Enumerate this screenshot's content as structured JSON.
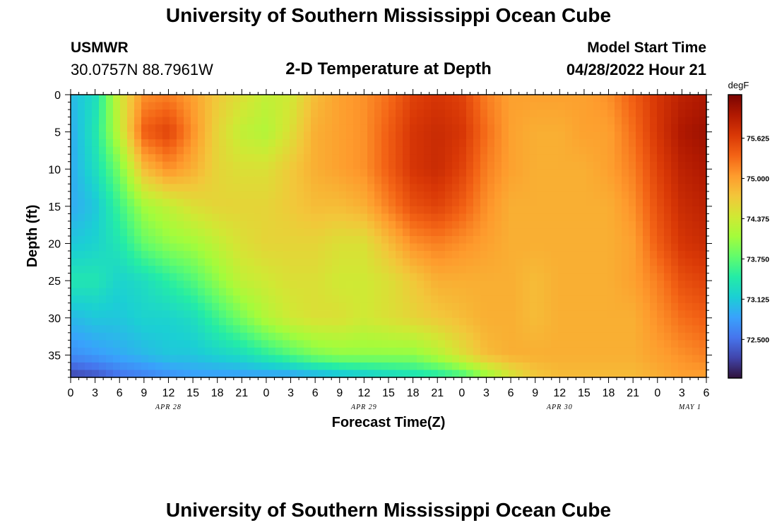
{
  "header": {
    "title": "University of Southern Mississippi Ocean Cube",
    "station": "USMWR",
    "coordinates": "30.0757N  88.7961W",
    "subtitle": "2-D Temperature at Depth",
    "model_start_label": "Model Start Time",
    "model_start_value": "04/28/2022 Hour 21"
  },
  "footer": {
    "title": "University of Southern Mississippi Ocean Cube"
  },
  "chart_data": {
    "type": "heatmap",
    "title": "2-D Temperature at Depth",
    "xlabel": "Forecast Time(Z)",
    "ylabel": "Depth (ft)",
    "colorbar_label": "degF",
    "x_range_hours": [
      0,
      78
    ],
    "y_range_ft": [
      0,
      38
    ],
    "y_inverted": true,
    "x_tick_step_hours": 3,
    "x_tick_labels": [
      "0",
      "3",
      "6",
      "9",
      "12",
      "15",
      "18",
      "21",
      "0",
      "3",
      "6",
      "9",
      "12",
      "15",
      "18",
      "21",
      "0",
      "3",
      "6",
      "9",
      "12",
      "15",
      "18",
      "21",
      "0",
      "3",
      "6"
    ],
    "date_labels": [
      {
        "label": "APR 28",
        "hour": 12
      },
      {
        "label": "APR 29",
        "hour": 36
      },
      {
        "label": "APR 30",
        "hour": 60
      },
      {
        "label": "MAY 1",
        "hour": 76
      }
    ],
    "y_ticks": [
      0,
      5,
      10,
      15,
      20,
      25,
      30,
      35
    ],
    "colorbar_ticks": [
      "75.625",
      "75.000",
      "74.375",
      "73.750",
      "73.125",
      "72.500"
    ],
    "color_range": [
      71.9,
      76.3
    ],
    "colormap": [
      "#30123b",
      "#4145ab",
      "#4675ed",
      "#39a2fc",
      "#1bcfd4",
      "#24eca6",
      "#61fc6c",
      "#a4fc3b",
      "#d1e834",
      "#f3c63a",
      "#fe9b2d",
      "#f36315",
      "#d93806",
      "#b11901",
      "#7a0402"
    ],
    "grid_time_hours": [
      0,
      3,
      6,
      9,
      12,
      15,
      18,
      21,
      24,
      27,
      30,
      33,
      36,
      39,
      42,
      45,
      48,
      51,
      54,
      57,
      60,
      63,
      66,
      69,
      72,
      75,
      78
    ],
    "grid_depth_ft": [
      0,
      5,
      10,
      15,
      20,
      25,
      30,
      35,
      38
    ],
    "values": [
      [
        73.0,
        73.3,
        74.4,
        75.1,
        75.2,
        75.0,
        74.7,
        74.5,
        74.3,
        74.4,
        74.8,
        75.0,
        75.1,
        75.3,
        75.6,
        75.7,
        75.6,
        75.2,
        75.0,
        75.0,
        75.0,
        75.0,
        75.1,
        75.4,
        75.7,
        75.9,
        76.0
      ],
      [
        72.9,
        73.4,
        74.3,
        75.4,
        75.6,
        75.1,
        74.6,
        74.3,
        74.2,
        74.5,
        74.9,
        75.0,
        75.1,
        75.4,
        75.7,
        75.8,
        75.7,
        75.3,
        75.0,
        74.9,
        74.9,
        75.0,
        75.0,
        75.3,
        75.7,
        76.0,
        76.1
      ],
      [
        72.9,
        73.3,
        73.9,
        74.8,
        75.1,
        74.9,
        74.6,
        74.5,
        74.5,
        74.7,
        74.9,
        75.0,
        75.1,
        75.4,
        75.7,
        75.8,
        75.6,
        75.2,
        75.0,
        74.9,
        74.9,
        74.9,
        75.0,
        75.2,
        75.6,
        75.9,
        76.0
      ],
      [
        72.9,
        73.1,
        73.6,
        74.1,
        74.3,
        74.5,
        74.6,
        74.6,
        74.6,
        74.7,
        74.8,
        74.8,
        74.9,
        75.2,
        75.5,
        75.6,
        75.4,
        75.1,
        74.9,
        74.9,
        74.9,
        74.9,
        74.9,
        75.1,
        75.5,
        75.8,
        75.9
      ],
      [
        73.1,
        73.2,
        73.4,
        73.8,
        74.0,
        74.1,
        74.3,
        74.5,
        74.6,
        74.6,
        74.6,
        74.5,
        74.5,
        74.8,
        75.1,
        75.2,
        75.1,
        75.0,
        74.9,
        74.9,
        74.9,
        74.9,
        74.9,
        75.0,
        75.4,
        75.7,
        75.8
      ],
      [
        73.4,
        73.4,
        73.2,
        73.3,
        73.5,
        73.7,
        74.0,
        74.3,
        74.4,
        74.5,
        74.5,
        74.4,
        74.4,
        74.5,
        74.7,
        74.9,
        74.9,
        74.9,
        74.9,
        74.8,
        74.9,
        74.9,
        74.9,
        75.0,
        75.2,
        75.5,
        75.6
      ],
      [
        73.0,
        73.1,
        73.1,
        73.2,
        73.2,
        73.3,
        73.6,
        73.9,
        74.2,
        74.4,
        74.5,
        74.5,
        74.4,
        74.5,
        74.6,
        74.7,
        74.8,
        74.9,
        74.9,
        74.8,
        74.9,
        74.9,
        74.9,
        74.9,
        75.1,
        75.3,
        75.4
      ],
      [
        72.7,
        72.8,
        72.9,
        73.0,
        73.1,
        73.1,
        73.2,
        73.3,
        73.5,
        73.7,
        73.9,
        74.0,
        74.0,
        74.0,
        74.0,
        74.2,
        74.5,
        74.8,
        74.9,
        74.9,
        74.9,
        74.9,
        74.9,
        74.9,
        75.0,
        75.1,
        75.2
      ],
      [
        72.2,
        72.3,
        72.5,
        72.6,
        72.7,
        72.8,
        72.8,
        72.8,
        72.8,
        72.8,
        72.9,
        73.0,
        73.1,
        73.2,
        73.3,
        73.4,
        73.6,
        74.0,
        74.4,
        74.7,
        74.8,
        74.8,
        74.8,
        74.8,
        74.9,
        75.0,
        75.0
      ]
    ]
  }
}
